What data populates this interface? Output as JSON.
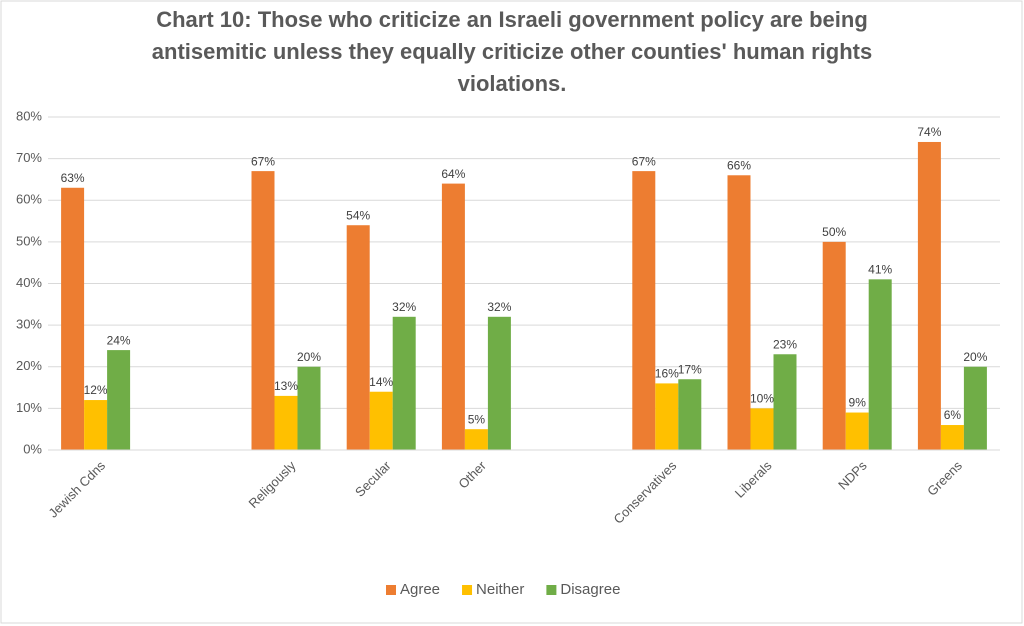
{
  "chart_data": {
    "type": "bar",
    "title": "Chart 10: Those who criticize an Israeli government policy are being antisemitic unless they equally criticize other counties' human rights violations.",
    "categories": [
      "Jewish Cdns",
      null,
      "Religously",
      "Secular",
      "Other",
      null,
      "Conservatives",
      "Liberals",
      "NDPs",
      "Greens"
    ],
    "series": [
      {
        "name": "Agree",
        "color": "#ed7d31",
        "values": [
          63,
          null,
          67,
          54,
          64,
          null,
          67,
          66,
          50,
          74
        ],
        "value_labels": [
          "63%",
          null,
          "67%",
          "54%",
          "64%",
          null,
          "67%",
          "66%",
          "50%",
          "74%"
        ]
      },
      {
        "name": "Neither",
        "color": "#ffc000",
        "values": [
          12,
          null,
          13,
          14,
          5,
          null,
          16,
          10,
          9,
          6
        ],
        "value_labels": [
          "12%",
          null,
          "13%",
          "14%",
          "5%",
          null,
          "16%",
          "10%",
          "9%",
          "6%"
        ]
      },
      {
        "name": "Disagree",
        "color": "#70ad47",
        "values": [
          24,
          null,
          20,
          32,
          32,
          null,
          17,
          23,
          41,
          20
        ],
        "value_labels": [
          "24%",
          null,
          "20%",
          "32%",
          "32%",
          null,
          "17%",
          "23%",
          "41%",
          "20%"
        ]
      }
    ],
    "ylim": [
      0,
      80
    ],
    "yticks": [
      {
        "value": 0,
        "label": "0%"
      },
      {
        "value": 10,
        "label": "10%"
      },
      {
        "value": 20,
        "label": "20%"
      },
      {
        "value": 30,
        "label": "30%"
      },
      {
        "value": 40,
        "label": "40%"
      },
      {
        "value": 50,
        "label": "50%"
      },
      {
        "value": 60,
        "label": "60%"
      },
      {
        "value": 70,
        "label": "70%"
      },
      {
        "value": 80,
        "label": "80%"
      }
    ],
    "grid": true,
    "legend": "bottom"
  }
}
